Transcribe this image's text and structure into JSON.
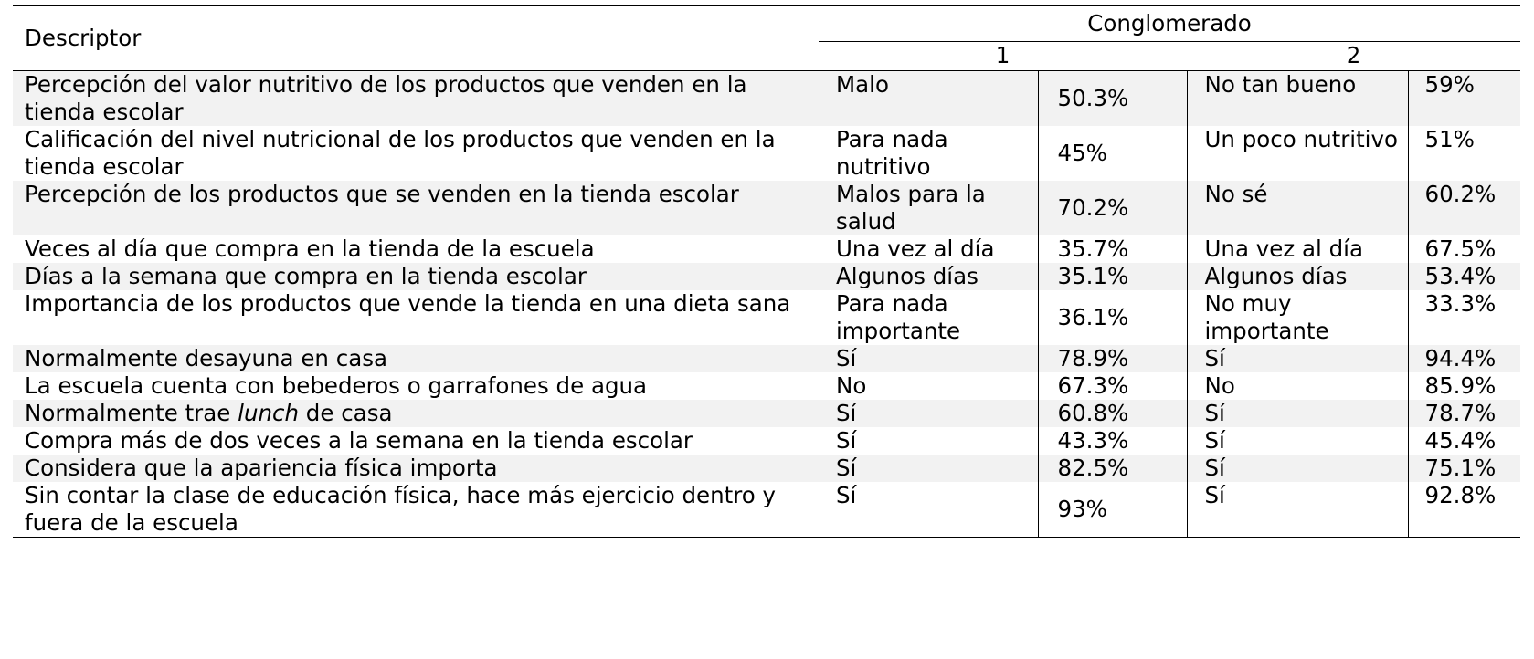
{
  "table": {
    "header": {
      "descriptor": "Descriptor",
      "group": "Conglomerado",
      "cluster1": "1",
      "cluster2": "2"
    },
    "rows": [
      {
        "desc": "Percepción del valor nutritivo de los productos que venden en la tienda escolar",
        "v1": "Malo",
        "p1": "50.3%",
        "v2": "No tan bueno",
        "p2": "59%"
      },
      {
        "desc": "Calificación del nivel nutricional de los productos  que venden en la tienda escolar",
        "v1": "Para nada nutritivo",
        "p1": "45%",
        "v2": "Un poco nutritivo",
        "p2": "51%"
      },
      {
        "desc": "Percepción de los productos que se venden en la tienda escolar",
        "v1": "Malos para la salud",
        "p1": "70.2%",
        "v2": "No sé",
        "p2": "60.2%"
      },
      {
        "desc": "Veces al día que compra en la tienda de la escuela",
        "v1": "Una vez al día",
        "p1": "35.7%",
        "v2": "Una vez al día",
        "p2": "67.5%"
      },
      {
        "desc": "Días a la semana que compra en la tienda escolar",
        "v1": "Algunos días",
        "p1": "35.1%",
        "v2": "Algunos días",
        "p2": "53.4%"
      },
      {
        "desc": "Importancia de los productos que vende la tienda en una dieta sana",
        "v1": "Para nada importante",
        "p1": "36.1%",
        "v2": "No muy importante",
        "p2": "33.3%"
      },
      {
        "desc": "Normalmente desayuna en casa",
        "v1": "Sí",
        "p1": "78.9%",
        "v2": "Sí",
        "p2": "94.4%"
      },
      {
        "desc": "La escuela cuenta con bebederos o garrafones de agua",
        "v1": "No",
        "p1": "67.3%",
        "v2": "No",
        "p2": "85.9%"
      },
      {
        "desc_pre": "Normalmente trae ",
        "desc_em": "lunch",
        "desc_post": " de casa",
        "v1": "Sí",
        "p1": "60.8%",
        "v2": "Sí",
        "p2": "78.7%"
      },
      {
        "desc": "Compra más de dos veces a la semana en la tienda escolar",
        "v1": "Sí",
        "p1": "43.3%",
        "v2": "Sí",
        "p2": "45.4%"
      },
      {
        "desc": "Considera que la apariencia física importa",
        "v1": "Sí",
        "p1": "82.5%",
        "v2": "Sí",
        "p2": "75.1%"
      },
      {
        "desc": "Sin contar la clase de educación física, hace más ejercicio dentro y fuera de la escuela",
        "v1": "Sí",
        "p1": "93%",
        "v2": "Sí",
        "p2": "92.8%"
      }
    ]
  }
}
